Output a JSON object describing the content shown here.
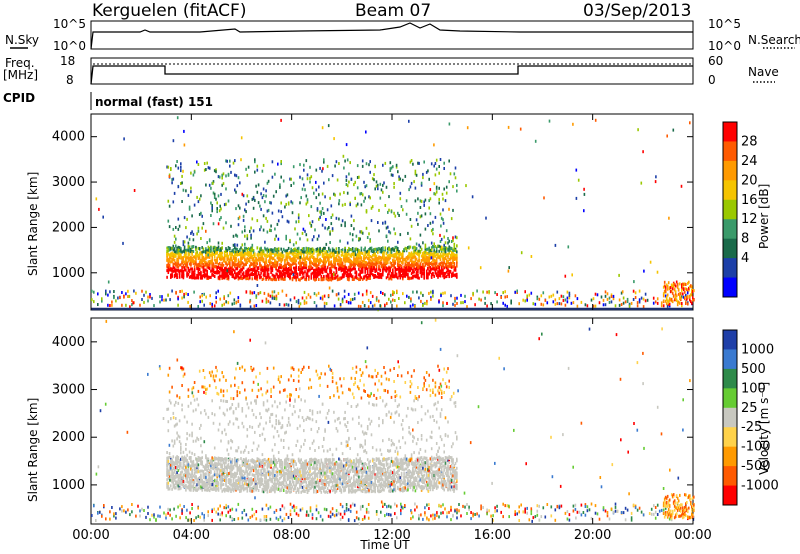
{
  "header": {
    "station": "Kerguelen (fitACF)",
    "beam": "Beam 07",
    "date": "03/Sep/2013"
  },
  "top_panels": {
    "nsky_label": "N.Sky",
    "nsky_ticks": [
      "10^5",
      "10^0"
    ],
    "nsearch_label": "N.Search",
    "nsearch_ticks": [
      "10^5",
      "10^0"
    ],
    "freq_label_1": "Freq.",
    "freq_label_2": "[MHz]",
    "freq_ticks": [
      "18",
      "8"
    ],
    "nave_label": "Nave",
    "nave_ticks": [
      "60",
      "0"
    ],
    "cpid_label": "CPID",
    "cpid_value": "normal (fast) 151"
  },
  "chart_data": [
    {
      "type": "heatmap",
      "name": "power",
      "ylabel": "Slant Range [km]",
      "yticks": [
        "4000",
        "3000",
        "2000",
        "1000"
      ],
      "ylim": [
        180,
        4500
      ],
      "colorbar_label": "Power [dB]",
      "colorbar_ticks": [
        "28",
        "24",
        "20",
        "16",
        "12",
        "8",
        "4"
      ],
      "colors": [
        "#ff0000",
        "#ff5a00",
        "#ff9a00",
        "#f5c400",
        "#9ac800",
        "#3a9a6a",
        "#1a6a4a",
        "#1c3fa8",
        "#0000ff"
      ]
    },
    {
      "type": "heatmap",
      "name": "velocity",
      "ylabel": "Slant Range [km]",
      "yticks": [
        "4000",
        "3000",
        "2000",
        "1000"
      ],
      "ylim": [
        180,
        4500
      ],
      "colorbar_label": "Velocity [m s⁻¹]",
      "colorbar_ticks": [
        "1000",
        "500",
        "100",
        "25",
        "-25",
        "-100",
        "-500",
        "-1000"
      ],
      "colors": [
        "#1f3fa8",
        "#3a7ad0",
        "#2e8a4a",
        "#66cc33",
        "#c8c8c0",
        "#ffd24a",
        "#ff9a00",
        "#ff5a00",
        "#ff0000"
      ]
    }
  ],
  "xaxis": {
    "ticks": [
      "00:00",
      "04:00",
      "08:00",
      "12:00",
      "16:00",
      "20:00",
      "00:00"
    ],
    "label": "Time UT"
  }
}
